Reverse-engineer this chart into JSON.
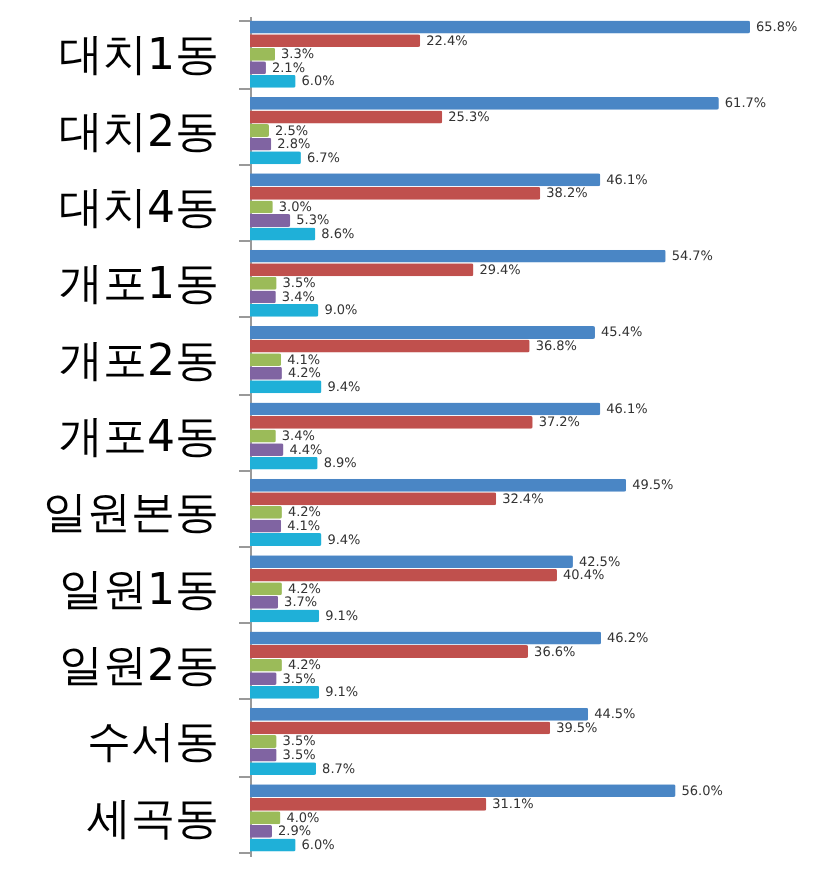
{
  "chart_data": {
    "type": "bar",
    "orientation": "horizontal",
    "categories": [
      "대치1동",
      "대치2동",
      "대치4동",
      "개포1동",
      "개포2동",
      "개포4동",
      "일원본동",
      "일원1동",
      "일원2동",
      "수서동",
      "세곡동"
    ],
    "series": [
      {
        "color": "#4a86c5",
        "values": [
          65.8,
          61.7,
          46.1,
          54.7,
          45.4,
          46.1,
          49.5,
          42.5,
          46.2,
          44.5,
          56.0
        ],
        "value_labels": [
          "65.8%",
          "61.7%",
          "46.1%",
          "54.7%",
          "45.4%",
          "46.1%",
          "49.5%",
          "42.5%",
          "46.2%",
          "44.5%",
          "56.0%"
        ]
      },
      {
        "color": "#c0504d",
        "values": [
          22.4,
          25.3,
          38.2,
          29.4,
          36.8,
          37.2,
          32.4,
          40.4,
          36.6,
          39.5,
          31.1
        ],
        "value_labels": [
          "22.4%",
          "25.3%",
          "38.2%",
          "29.4%",
          "36.8%",
          "37.2%",
          "32.4%",
          "40.4%",
          "36.6%",
          "39.5%",
          "31.1%"
        ]
      },
      {
        "color": "#9bbb59",
        "values": [
          3.3,
          2.5,
          3.0,
          3.5,
          4.1,
          3.4,
          4.2,
          4.2,
          4.2,
          3.5,
          4.0
        ],
        "value_labels": [
          "3.3%",
          "2.5%",
          "3.0%",
          "3.5%",
          "4.1%",
          "3.4%",
          "4.2%",
          "4.2%",
          "4.2%",
          "3.5%",
          "4.0%"
        ]
      },
      {
        "color": "#8064a2",
        "values": [
          2.1,
          2.8,
          5.3,
          3.4,
          4.2,
          4.4,
          4.1,
          3.7,
          3.5,
          3.5,
          2.9
        ],
        "value_labels": [
          "2.1%",
          "2.8%",
          "5.3%",
          "3.4%",
          "4.2%",
          "4.4%",
          "4.1%",
          "3.7%",
          "3.5%",
          "3.5%",
          "2.9%"
        ]
      },
      {
        "color": "#1fb0d8",
        "values": [
          6.0,
          6.7,
          8.6,
          9.0,
          9.4,
          8.9,
          9.4,
          9.1,
          9.1,
          8.7,
          6.0
        ],
        "value_labels": [
          "6.0%",
          "6.7%",
          "8.6%",
          "9.0%",
          "9.4%",
          "8.9%",
          "9.4%",
          "9.1%",
          "9.1%",
          "8.7%",
          "6.0%"
        ]
      }
    ]
  }
}
